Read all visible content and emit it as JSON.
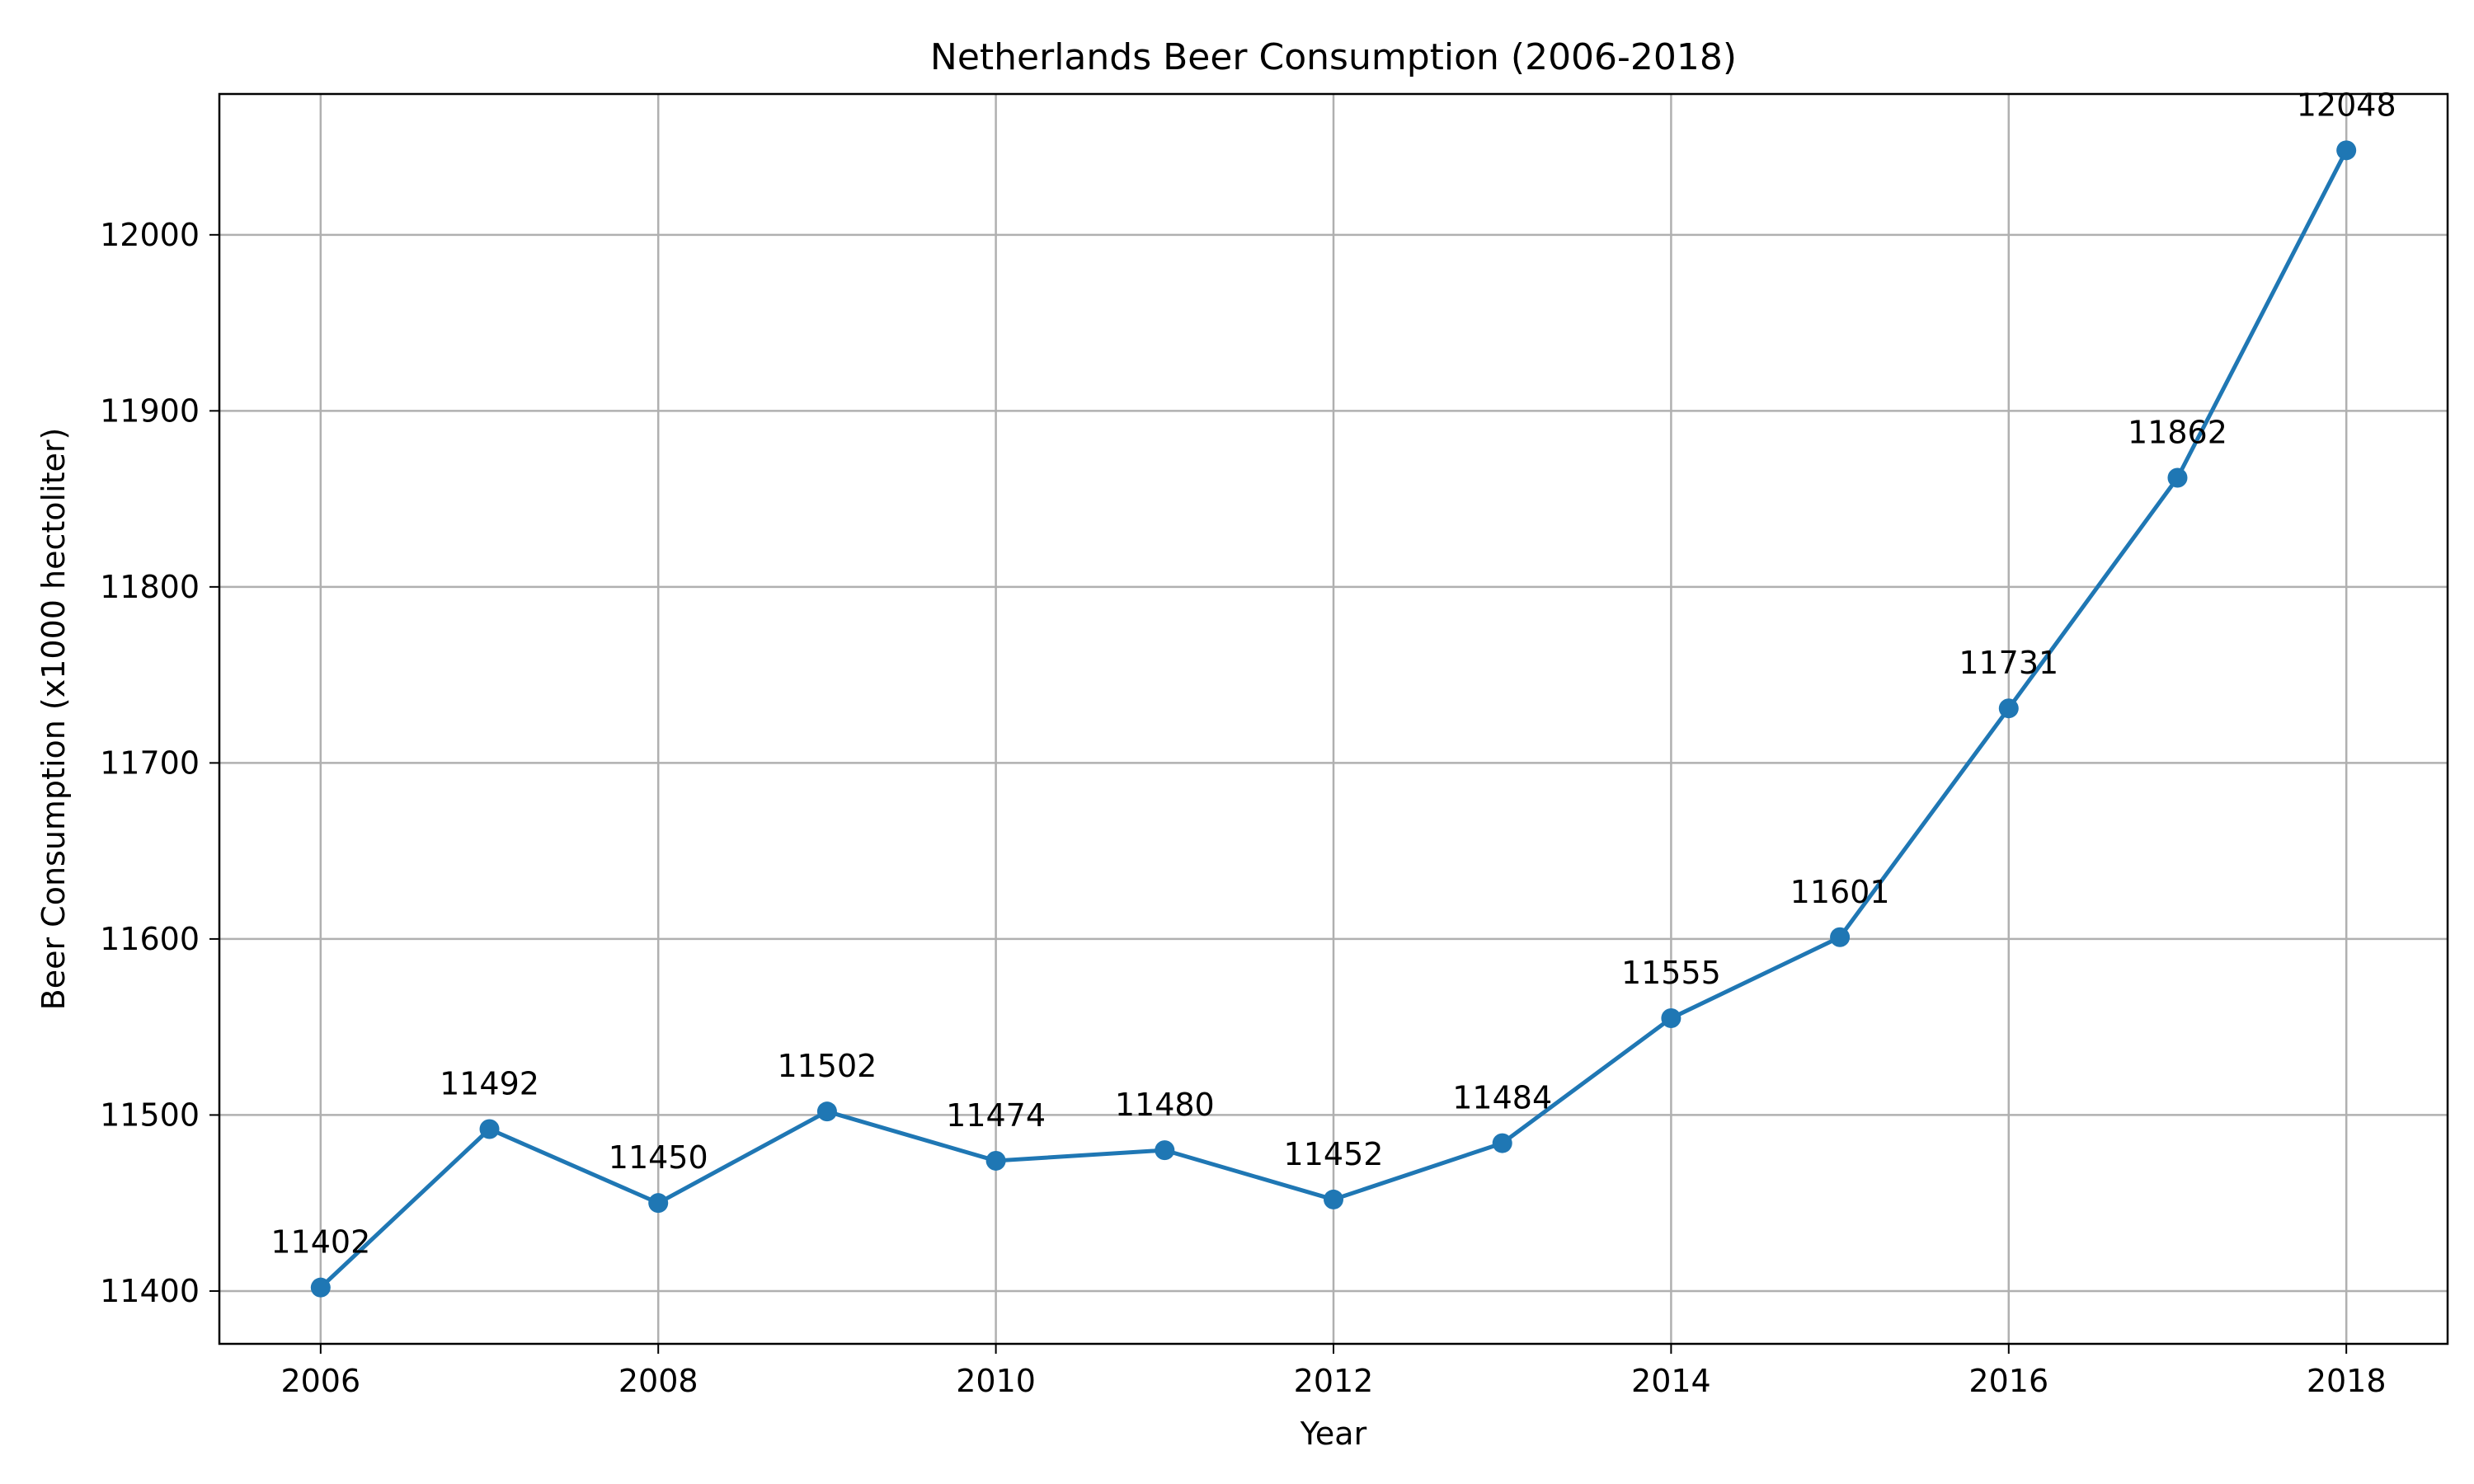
{
  "chart_data": {
    "type": "line",
    "title": "Netherlands Beer Consumption (2006-2018)",
    "xlabel": "Year",
    "ylabel": "Beer Consumption (x1000 hectoliter)",
    "x": [
      2006,
      2007,
      2008,
      2009,
      2010,
      2011,
      2012,
      2013,
      2014,
      2015,
      2016,
      2017,
      2018
    ],
    "series": [
      {
        "values": [
          11402,
          11492,
          11450,
          11502,
          11474,
          11480,
          11452,
          11484,
          11555,
          11601,
          11731,
          11862,
          12048
        ]
      }
    ],
    "xticks": [
      "2006",
      "2008",
      "2010",
      "2012",
      "2014",
      "2016",
      "2018"
    ],
    "yticks": [
      "11400",
      "11500",
      "11600",
      "11700",
      "11800",
      "11900",
      "12000"
    ],
    "xlim": [
      2005.4,
      2018.6
    ],
    "ylim": [
      11370,
      12080
    ],
    "grid": true,
    "line_color": "#1f77b4",
    "marker": "circle",
    "data_labels": true
  }
}
